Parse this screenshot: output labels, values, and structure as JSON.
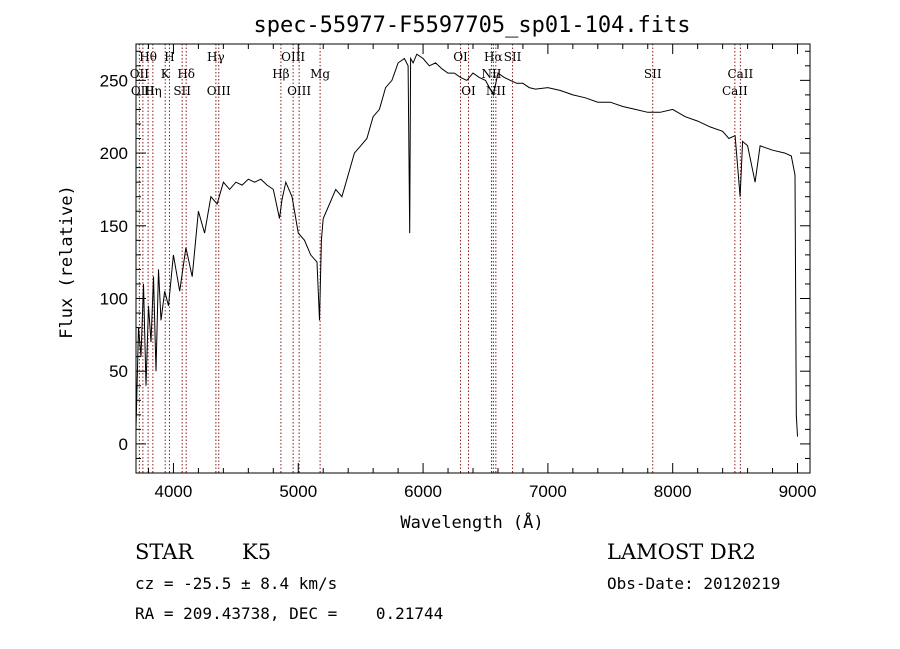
{
  "chart_data": {
    "type": "line",
    "title": "spec-55977-F5597705_sp01-104.fits",
    "xlabel": "Wavelength (Å)",
    "ylabel": "Flux (relative)",
    "xlim": [
      3700,
      9100
    ],
    "ylim": [
      -20,
      275
    ],
    "xticks": [
      4000,
      5000,
      6000,
      7000,
      8000,
      9000
    ],
    "yticks": [
      0,
      50,
      100,
      150,
      200,
      250
    ],
    "grid": false,
    "series": [
      {
        "color": "#000000",
        "x": [
          3700,
          3720,
          3740,
          3760,
          3780,
          3800,
          3820,
          3840,
          3860,
          3880,
          3900,
          3930,
          3960,
          4000,
          4050,
          4100,
          4150,
          4200,
          4250,
          4300,
          4350,
          4400,
          4450,
          4500,
          4550,
          4600,
          4650,
          4700,
          4750,
          4800,
          4850,
          4870,
          4900,
          4950,
          5000,
          5050,
          5100,
          5150,
          5170,
          5185,
          5200,
          5250,
          5300,
          5350,
          5400,
          5450,
          5500,
          5550,
          5600,
          5650,
          5700,
          5750,
          5800,
          5850,
          5880,
          5893,
          5900,
          5920,
          5950,
          6000,
          6050,
          6100,
          6150,
          6200,
          6250,
          6300,
          6350,
          6400,
          6450,
          6500,
          6563,
          6600,
          6650,
          6700,
          6750,
          6800,
          6850,
          6900,
          7000,
          7100,
          7200,
          7300,
          7400,
          7500,
          7600,
          7700,
          7800,
          7900,
          8000,
          8100,
          8200,
          8300,
          8400,
          8450,
          8500,
          8540,
          8560,
          8600,
          8660,
          8700,
          8800,
          8900,
          8950,
          8980,
          8990,
          9000
        ],
        "values": [
          10,
          80,
          60,
          110,
          40,
          95,
          70,
          115,
          50,
          120,
          85,
          105,
          95,
          130,
          105,
          135,
          115,
          160,
          145,
          170,
          165,
          180,
          175,
          180,
          178,
          182,
          180,
          182,
          178,
          175,
          155,
          168,
          180,
          170,
          145,
          140,
          130,
          125,
          85,
          140,
          155,
          165,
          175,
          170,
          185,
          200,
          205,
          210,
          225,
          230,
          245,
          250,
          262,
          265,
          260,
          145,
          265,
          262,
          268,
          265,
          260,
          262,
          258,
          255,
          255,
          252,
          250,
          255,
          252,
          250,
          240,
          255,
          252,
          250,
          248,
          248,
          245,
          244,
          245,
          243,
          240,
          238,
          235,
          235,
          232,
          230,
          228,
          228,
          230,
          225,
          222,
          218,
          215,
          210,
          212,
          170,
          208,
          205,
          180,
          205,
          202,
          200,
          198,
          185,
          20,
          5
        ]
      }
    ],
    "spectral_lines": [
      {
        "label": "Hθ",
        "x": 3797,
        "row": 1
      },
      {
        "label": "OII",
        "x": 3727,
        "row": 2
      },
      {
        "label": "OIII",
        "x": 3755,
        "row": 3
      },
      {
        "label": "Hη",
        "x": 3835,
        "row": 3
      },
      {
        "label": "H",
        "x": 3968,
        "row": 1
      },
      {
        "label": "K",
        "x": 3934,
        "row": 2
      },
      {
        "label": "Hδ",
        "x": 4102,
        "row": 2
      },
      {
        "label": "SII",
        "x": 4070,
        "row": 3
      },
      {
        "label": "Hγ",
        "x": 4340,
        "row": 1
      },
      {
        "label": "OIII",
        "x": 4363,
        "row": 3
      },
      {
        "label": "OIII",
        "x": 4959,
        "row": 1
      },
      {
        "label": "Hβ",
        "x": 4861,
        "row": 2
      },
      {
        "label": "OIII",
        "x": 5007,
        "row": 3
      },
      {
        "label": "Mg",
        "x": 5175,
        "row": 2
      },
      {
        "label": "OI",
        "x": 6300,
        "row": 1
      },
      {
        "label": "OI",
        "x": 6364,
        "row": 3
      },
      {
        "label": "Hα",
        "x": 6563,
        "row": 1
      },
      {
        "label": "NII",
        "x": 6548,
        "row": 2
      },
      {
        "label": "NII",
        "x": 6583,
        "row": 3
      },
      {
        "label": "SII",
        "x": 6717,
        "row": 1
      },
      {
        "label": "SII",
        "x": 7840,
        "row": 2
      },
      {
        "label": "CaII",
        "x": 8542,
        "row": 2
      },
      {
        "label": "CaII",
        "x": 8498,
        "row": 3
      }
    ]
  },
  "info": {
    "class": "STAR",
    "subclass": "K5",
    "survey": "LAMOST DR2",
    "cz": "cz = -25.5 ± 8.4 km/s",
    "obs_date": "Obs-Date: 20120219",
    "coords": "RA = 209.43738, DEC =    0.21744"
  }
}
